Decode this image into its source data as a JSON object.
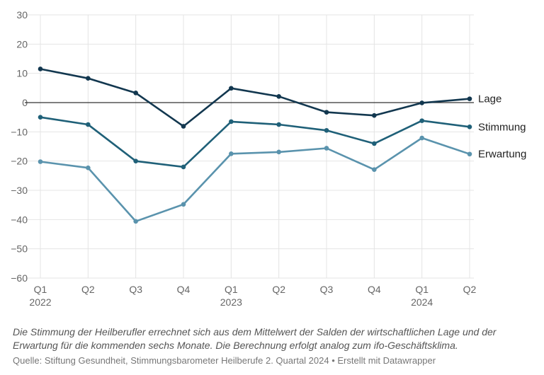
{
  "chart_data": {
    "type": "line",
    "categories": [
      "Q1",
      "Q2",
      "Q3",
      "Q4",
      "Q1",
      "Q2",
      "Q3",
      "Q4",
      "Q1",
      "Q2"
    ],
    "year_labels": [
      {
        "index": 0,
        "label": "2022"
      },
      {
        "index": 4,
        "label": "2023"
      },
      {
        "index": 8,
        "label": "2024"
      }
    ],
    "ylim": [
      -60,
      30
    ],
    "yticks": [
      {
        "value": 30,
        "label": "30"
      },
      {
        "value": 20,
        "label": "20"
      },
      {
        "value": 10,
        "label": "10"
      },
      {
        "value": 0,
        "label": "0"
      },
      {
        "value": -10,
        "label": "−10"
      },
      {
        "value": -20,
        "label": "−20"
      },
      {
        "value": -30,
        "label": "−30"
      },
      {
        "value": -40,
        "label": "−40"
      },
      {
        "value": -50,
        "label": "−50"
      },
      {
        "value": -60,
        "label": "−60"
      }
    ],
    "grid": true,
    "series": [
      {
        "name": "Lage",
        "color": "#12374f",
        "values": [
          11.5,
          8.3,
          3.3,
          -8.1,
          4.9,
          2.1,
          -3.3,
          -4.4,
          -0.1,
          1.3
        ]
      },
      {
        "name": "Stimmung",
        "color": "#1f6078",
        "values": [
          -5.0,
          -7.5,
          -20.0,
          -22.0,
          -6.5,
          -7.5,
          -9.5,
          -14.0,
          -6.2,
          -8.3
        ]
      },
      {
        "name": "Erwartung",
        "color": "#5a93ad",
        "values": [
          -20.2,
          -22.3,
          -40.6,
          -34.8,
          -17.5,
          -16.9,
          -15.6,
          -22.9,
          -12.1,
          -17.6
        ]
      }
    ]
  },
  "notes": "Die Stimmung der Heilberufler errechnet sich aus dem Mittelwert der Salden der wirtschaftlichen Lage und der Erwartung für die kommenden sechs Monate. Die Berechnung erfolgt analog zum ifo-Geschäftsklima.",
  "source": {
    "prefix": "Quelle: ",
    "text": "Stiftung Gesundheit, Stimmungsbarometer Heilberufe 2. Quartal 2024",
    "separator": " • ",
    "credit": "Erstellt mit Datawrapper"
  }
}
